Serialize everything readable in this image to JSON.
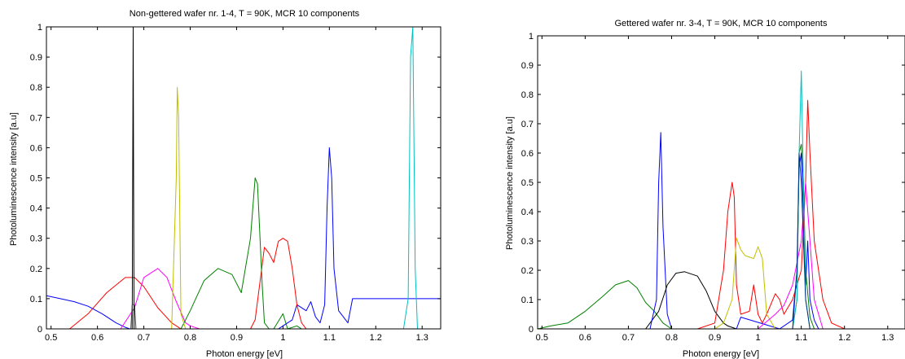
{
  "chart_data": [
    {
      "type": "line",
      "title": "Non-gettered wafer nr. 1-4, T = 90K, MCR 10 components",
      "xlabel": "Photon energy [eV]",
      "ylabel": "Photoluminescence intensity [a.u]",
      "xlim": [
        0.49,
        1.34
      ],
      "ylim": [
        0,
        1
      ],
      "xticks": [
        "0.5",
        "0.6",
        "0.7",
        "0.8",
        "0.9",
        "1",
        "1.1",
        "1.2",
        "1.3"
      ],
      "yticks": [
        "0",
        "0.1",
        "0.2",
        "0.3",
        "0.4",
        "0.5",
        "0.6",
        "0.7",
        "0.8",
        "0.9",
        "1"
      ],
      "grid": false,
      "series": [
        {
          "color": "#0000ff",
          "x": [
            0.49,
            0.52,
            0.55,
            0.58,
            0.61,
            0.64,
            0.66,
            0.67,
            0.7,
            0.75,
            0.8,
            0.85,
            0.9,
            0.95,
            0.99,
            1.0,
            1.02,
            1.03,
            1.05,
            1.06,
            1.07,
            1.08,
            1.09,
            1.095,
            1.1,
            1.105,
            1.11,
            1.12,
            1.14,
            1.15,
            1.2,
            1.25,
            1.28,
            1.3,
            1.34
          ],
          "y": [
            0.11,
            0.1,
            0.09,
            0.075,
            0.05,
            0.02,
            0.005,
            0,
            0,
            0,
            0,
            0,
            0,
            0,
            0,
            0.01,
            0.03,
            0.08,
            0.06,
            0.09,
            0.04,
            0.02,
            0.08,
            0.4,
            0.6,
            0.5,
            0.2,
            0.06,
            0.02,
            0.1,
            0.1,
            0.1,
            0.1,
            0.1,
            0.1
          ]
        },
        {
          "color": "#ff0000",
          "x": [
            0.54,
            0.58,
            0.62,
            0.66,
            0.68,
            0.7,
            0.73,
            0.76,
            0.78,
            0.8,
            0.93,
            0.94,
            0.95,
            0.96,
            0.97,
            0.98,
            0.99,
            1.0,
            1.01,
            1.02,
            1.03,
            1.04,
            1.05
          ],
          "y": [
            0,
            0.05,
            0.12,
            0.17,
            0.17,
            0.14,
            0.07,
            0.02,
            0,
            0,
            0,
            0.03,
            0.15,
            0.27,
            0.25,
            0.22,
            0.29,
            0.3,
            0.29,
            0.2,
            0.08,
            0.02,
            0
          ]
        },
        {
          "color": "#ff00ff",
          "x": [
            0.65,
            0.68,
            0.7,
            0.73,
            0.75,
            0.77,
            0.79,
            0.8,
            0.82
          ],
          "y": [
            0,
            0.07,
            0.17,
            0.2,
            0.17,
            0.09,
            0.02,
            0.01,
            0
          ]
        },
        {
          "color": "#008000",
          "x": [
            0.78,
            0.8,
            0.83,
            0.86,
            0.89,
            0.91,
            0.93,
            0.94,
            0.945,
            0.955,
            0.96,
            0.97,
            0.98,
            1.0,
            1.01,
            1.03,
            1.04
          ],
          "y": [
            0,
            0.06,
            0.16,
            0.2,
            0.18,
            0.12,
            0.3,
            0.5,
            0.48,
            0.15,
            0.02,
            0,
            0,
            0.05,
            0,
            0.01,
            0
          ]
        },
        {
          "color": "#c0c000",
          "x": [
            0.76,
            0.77,
            0.772,
            0.775,
            0.78,
            0.79,
            0.8
          ],
          "y": [
            0,
            0.5,
            0.8,
            0.7,
            0.05,
            0,
            0
          ]
        },
        {
          "color": "#000000",
          "x": [
            0.675,
            0.676,
            0.677,
            0.678,
            0.679
          ],
          "y": [
            0,
            0.5,
            1,
            0.5,
            0
          ]
        },
        {
          "color": "#404040",
          "x": [
            0.672,
            0.675,
            0.68,
            0.683
          ],
          "y": [
            0,
            0.08,
            0.08,
            0
          ]
        },
        {
          "color": "#00c0c0",
          "x": [
            1.26,
            1.27,
            1.275,
            1.28,
            1.285,
            1.29
          ],
          "y": [
            0,
            0.1,
            0.9,
            1,
            0.2,
            0
          ]
        }
      ]
    },
    {
      "type": "line",
      "title": "Gettered wafer nr. 3-4, T = 90K, MCR 10 components",
      "xlabel": "Photon energy [eV]",
      "ylabel": "Photoluminescence intensity [a.u]",
      "xlim": [
        0.49,
        1.34
      ],
      "ylim": [
        0,
        1
      ],
      "xticks": [
        "0.5",
        "0.6",
        "0.7",
        "0.8",
        "0.9",
        "1",
        "1.1",
        "1.2",
        "1.3"
      ],
      "yticks": [
        "0",
        "0.1",
        "0.2",
        "0.3",
        "0.4",
        "0.5",
        "0.6",
        "0.7",
        "0.8",
        "0.9",
        "1"
      ],
      "grid": false,
      "series": [
        {
          "color": "#008000",
          "x": [
            0.49,
            0.52,
            0.56,
            0.6,
            0.64,
            0.67,
            0.7,
            0.72,
            0.74,
            0.76,
            0.78,
            0.8,
            0.84,
            1.08,
            1.09,
            1.095,
            1.1,
            1.105,
            1.11,
            1.12,
            1.13,
            1.34
          ],
          "y": [
            0,
            0.01,
            0.02,
            0.06,
            0.11,
            0.15,
            0.165,
            0.14,
            0.09,
            0.06,
            0.02,
            0,
            0,
            0,
            0.1,
            0.6,
            0.63,
            0.5,
            0.2,
            0.04,
            0,
            0
          ]
        },
        {
          "color": "#000000",
          "x": [
            0.74,
            0.77,
            0.79,
            0.81,
            0.83,
            0.86,
            0.88,
            0.9,
            0.92,
            0.93,
            0.95
          ],
          "y": [
            0,
            0.06,
            0.15,
            0.19,
            0.195,
            0.18,
            0.13,
            0.06,
            0.02,
            0.01,
            0
          ]
        },
        {
          "color": "#0000ff",
          "x": [
            0.7,
            0.75,
            0.765,
            0.77,
            0.775,
            0.78,
            0.79,
            0.8,
            0.85,
            0.95,
            0.96,
            1.05,
            1.08,
            1.09,
            1.095,
            1.1,
            1.105,
            1.11,
            1.115,
            1.12,
            1.13,
            1.14,
            1.34
          ],
          "y": [
            0,
            0,
            0.1,
            0.5,
            0.67,
            0.35,
            0.05,
            0,
            0,
            0,
            0.04,
            0,
            0.03,
            0.2,
            0.55,
            0.6,
            0.4,
            0.15,
            0.3,
            0.1,
            0.03,
            0,
            0
          ]
        },
        {
          "color": "#ff0000",
          "x": [
            0.86,
            0.9,
            0.92,
            0.93,
            0.94,
            0.945,
            0.95,
            0.96,
            0.98,
            0.99,
            1.0,
            1.01,
            1.02,
            1.04,
            1.05,
            1.06,
            1.08,
            1.1,
            1.11,
            1.115,
            1.12,
            1.13,
            1.15,
            1.17,
            1.2
          ],
          "y": [
            0,
            0.02,
            0.2,
            0.4,
            0.5,
            0.45,
            0.15,
            0.05,
            0.06,
            0.15,
            0.05,
            0.02,
            0.05,
            0.12,
            0.1,
            0.05,
            0.1,
            0.2,
            0.5,
            0.78,
            0.6,
            0.3,
            0.1,
            0.02,
            0
          ]
        },
        {
          "color": "#c0c000",
          "x": [
            0.9,
            0.92,
            0.94,
            0.95,
            0.96,
            0.97,
            0.99,
            1.0,
            1.01,
            1.02,
            1.04
          ],
          "y": [
            0,
            0.02,
            0.1,
            0.31,
            0.27,
            0.25,
            0.24,
            0.28,
            0.24,
            0.05,
            0
          ]
        },
        {
          "color": "#ff00ff",
          "x": [
            1.0,
            1.04,
            1.06,
            1.08,
            1.1,
            1.11,
            1.12,
            1.13,
            1.15
          ],
          "y": [
            0,
            0.05,
            0.08,
            0.15,
            0.3,
            0.5,
            0.3,
            0.1,
            0
          ]
        },
        {
          "color": "#00c0c0",
          "x": [
            1.08,
            1.09,
            1.095,
            1.1,
            1.105,
            1.11,
            1.12
          ],
          "y": [
            0,
            0.1,
            0.6,
            0.88,
            0.5,
            0.1,
            0
          ]
        },
        {
          "color": "#003080",
          "x": [
            1.08,
            1.09,
            1.095,
            1.1,
            1.11,
            1.12
          ],
          "y": [
            0,
            0.2,
            0.6,
            0.5,
            0.1,
            0
          ]
        }
      ]
    }
  ]
}
